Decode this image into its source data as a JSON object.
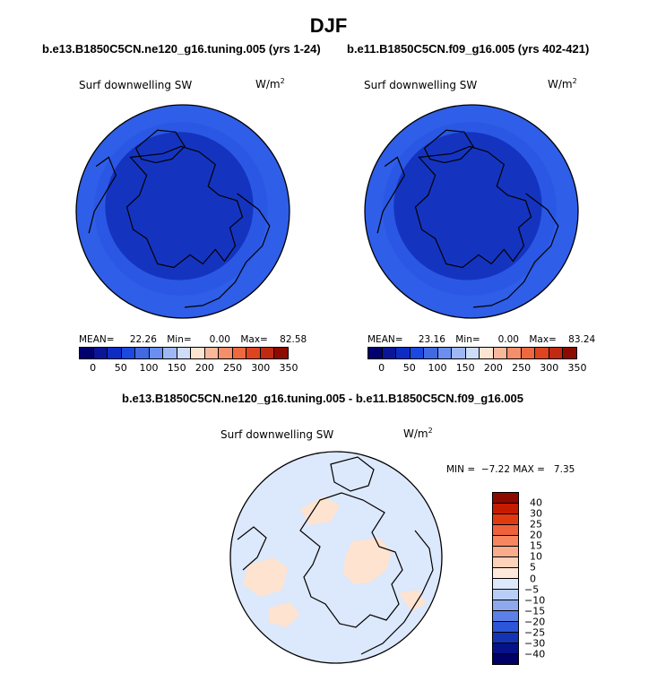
{
  "season": "DJF",
  "colors": {
    "cbar_abs": [
      "#02006e",
      "#0a1598",
      "#0d2cc4",
      "#1a48e0",
      "#4169e1",
      "#6a8ff0",
      "#9fb8f5",
      "#cfdcf8",
      "#fde4d1",
      "#f9b89a",
      "#f58e6a",
      "#ee6840",
      "#de4420",
      "#c02a10",
      "#8c0a00"
    ],
    "cbar_diff": [
      "#8c0a00",
      "#c51b00",
      "#e23a10",
      "#f0613a",
      "#f58660",
      "#f9ad8c",
      "#fcd2b8",
      "#fde8da",
      "#dde9fb",
      "#b9cef6",
      "#8ea9ee",
      "#5c80e6",
      "#2c55d8",
      "#1533b5",
      "#05128a",
      "#000066"
    ],
    "ocean_abs": "#2f5ee8",
    "ocean_abs_outer": "#1d46d6",
    "inner_abs": "#1434c0",
    "ring_abs": "#3a6bf0",
    "diff_base": "#dce8fb",
    "diff_pos": "#fde3d0"
  },
  "panels": [
    {
      "subtitle": "b.e13.B1850C5CN.ne120_g16.tuning.005 (yrs 1-24)",
      "variable": "Surf downwelling SW",
      "units": "W/m",
      "units_exp": "2",
      "mean_label": "MEAN=",
      "mean": "22.26",
      "min_label": "Min=",
      "min": "0.00",
      "max_label": "Max=",
      "max": "82.58"
    },
    {
      "subtitle": "b.e11.B1850C5CN.f09_g16.005 (yrs 402-421)",
      "variable": "Surf downwelling SW",
      "units": "W/m",
      "units_exp": "2",
      "mean_label": "MEAN=",
      "mean": "23.16",
      "min_label": "Min=",
      "min": "0.00",
      "max_label": "Max=",
      "max": "83.24"
    }
  ],
  "abs_ticks": [
    "0",
    "50",
    "100",
    "150",
    "200",
    "250",
    "300",
    "350"
  ],
  "diff": {
    "subtitle": "b.e13.B1850C5CN.ne120_g16.tuning.005 - b.e11.B1850C5CN.f09_g16.005",
    "variable": "Surf downwelling SW",
    "units": "W/m",
    "units_exp": "2",
    "stats": "MIN =  −7.22 MAX =   7.35",
    "ticks": [
      "40",
      "30",
      "25",
      "20",
      "15",
      "10",
      "5",
      "0",
      "−5",
      "−10",
      "−15",
      "−20",
      "−25",
      "−30",
      "−40"
    ]
  }
}
